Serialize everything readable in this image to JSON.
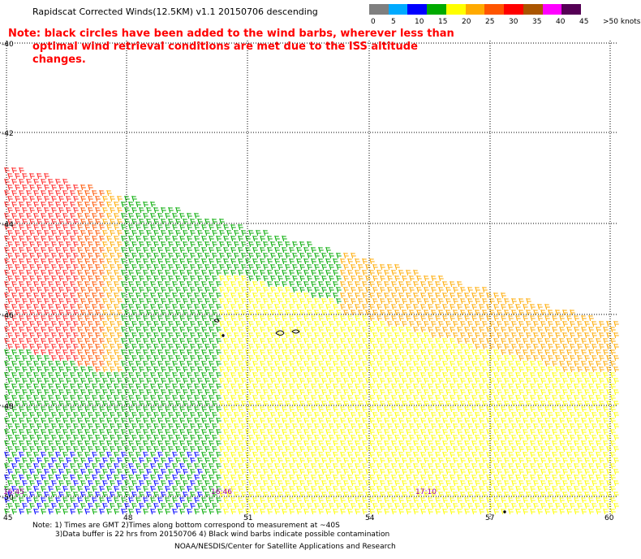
{
  "title": "Rapidscat Corrected Winds(12.5KM) v1.1 20150706 descending",
  "note_line1": "Note: black circles have been added to the wind barbs, wherever less than",
  "note_line2": "optimal wind retrieval conditions are met due to the ISS altitude changes.",
  "legend": {
    "colors": [
      "#7f7f7f",
      "#00aaff",
      "#0000ff",
      "#00aa00",
      "#ffff00",
      "#ffaa00",
      "#ff5500",
      "#ff0000",
      "#aa5500",
      "#ff00ff",
      "#550055"
    ],
    "labels": [
      "0",
      "5",
      "10",
      "15",
      "20",
      "25",
      "30",
      "35",
      "40",
      "45",
      ">50 knots"
    ]
  },
  "map": {
    "lat_labels": [
      "-40",
      "-42",
      "-44",
      "-46",
      "-48",
      "-50"
    ],
    "lon_labels": [
      "45",
      "48",
      "51",
      "54",
      "57",
      "60"
    ],
    "time_labels": [
      "16:45",
      "16:46",
      "17:10"
    ]
  },
  "footer": {
    "line1": "Note: 1) Times are GMT 2)Times along bottom correspond to measurement at ~40S",
    "line2": "3)Data buffer is 22 hrs from 20150706 4) Black wind barbs indicate possible contamination",
    "credit": "NOAA/NESDIS/Center for Satellite Applications and Research"
  }
}
